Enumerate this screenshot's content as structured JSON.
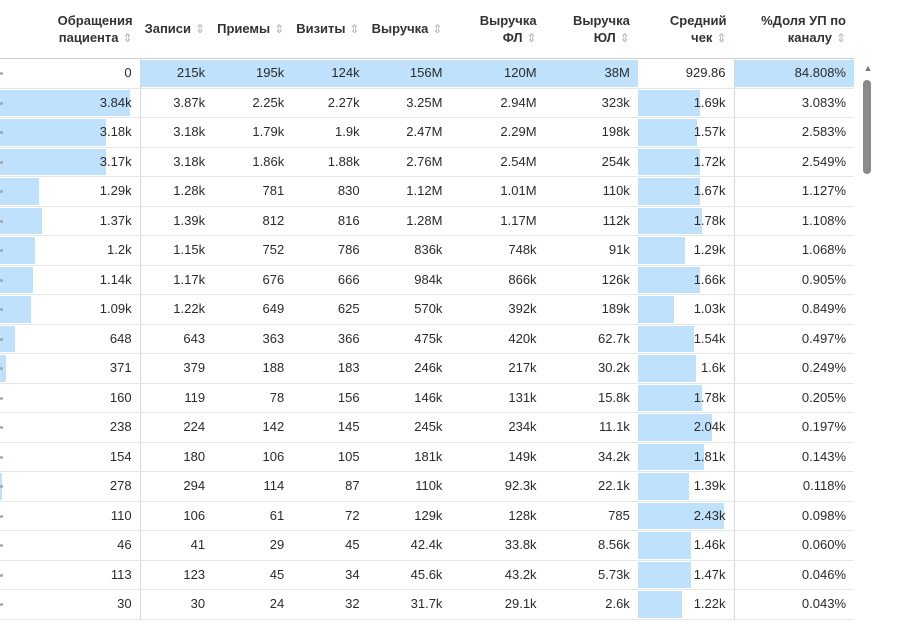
{
  "headers": [
    {
      "line1": "Обращения",
      "line2": "пациента"
    },
    {
      "line1": "",
      "line2": "Записи"
    },
    {
      "line1": "",
      "line2": "Приемы"
    },
    {
      "line1": "",
      "line2": "Визиты"
    },
    {
      "line1": "",
      "line2": "Выручка"
    },
    {
      "line1": "Выручка",
      "line2": "ФЛ"
    },
    {
      "line1": "Выручка",
      "line2": "ЮЛ"
    },
    {
      "line1": "Средний",
      "line2": "чек"
    },
    {
      "line1": "%Доля УП по",
      "line2": "каналу"
    }
  ],
  "sort_glyph": "⇕",
  "scroll_up_glyph": "▲",
  "bar_color": "#bfe1fb",
  "rows": [
    {
      "cells": [
        "0",
        "215k",
        "195k",
        "124k",
        "156M",
        "120M",
        "38M",
        "929.86",
        "84.808%"
      ],
      "bars": [
        0,
        1,
        1,
        1,
        1,
        1,
        1,
        0,
        1
      ]
    },
    {
      "cells": [
        "3.84k",
        "3.87k",
        "2.25k",
        "2.27k",
        "3.25M",
        "2.94M",
        "323k",
        "1.69k",
        "3.083%"
      ],
      "bars": [
        1.0,
        0,
        0,
        0,
        0,
        0,
        0,
        0.73,
        0
      ]
    },
    {
      "cells": [
        "3.18k",
        "3.18k",
        "1.79k",
        "1.9k",
        "2.47M",
        "2.29M",
        "198k",
        "1.57k",
        "2.583%"
      ],
      "bars": [
        0.83,
        0,
        0,
        0,
        0,
        0,
        0,
        0.69,
        0
      ]
    },
    {
      "cells": [
        "3.17k",
        "3.18k",
        "1.86k",
        "1.88k",
        "2.76M",
        "2.54M",
        "254k",
        "1.72k",
        "2.549%"
      ],
      "bars": [
        0.83,
        0,
        0,
        0,
        0,
        0,
        0,
        0.73,
        0
      ]
    },
    {
      "cells": [
        "1.29k",
        "1.28k",
        "781",
        "830",
        "1.12M",
        "1.01M",
        "110k",
        "1.67k",
        "1.127%"
      ],
      "bars": [
        0.34,
        0,
        0,
        0,
        0,
        0,
        0,
        0.72,
        0
      ]
    },
    {
      "cells": [
        "1.37k",
        "1.39k",
        "812",
        "816",
        "1.28M",
        "1.17M",
        "112k",
        "1.78k",
        "1.108%"
      ],
      "bars": [
        0.36,
        0,
        0,
        0,
        0,
        0,
        0,
        0.75,
        0
      ]
    },
    {
      "cells": [
        "1.2k",
        "1.15k",
        "752",
        "786",
        "836k",
        "748k",
        "91k",
        "1.29k",
        "1.068%"
      ],
      "bars": [
        0.31,
        0,
        0,
        0,
        0,
        0,
        0,
        0.55,
        0
      ]
    },
    {
      "cells": [
        "1.14k",
        "1.17k",
        "676",
        "666",
        "984k",
        "866k",
        "126k",
        "1.66k",
        "0.905%"
      ],
      "bars": [
        0.3,
        0,
        0,
        0,
        0,
        0,
        0,
        0.72,
        0
      ]
    },
    {
      "cells": [
        "1.09k",
        "1.22k",
        "649",
        "625",
        "570k",
        "392k",
        "189k",
        "1.03k",
        "0.849%"
      ],
      "bars": [
        0.28,
        0,
        0,
        0,
        0,
        0,
        0,
        0.42,
        0
      ]
    },
    {
      "cells": [
        "648",
        "643",
        "363",
        "366",
        "475k",
        "420k",
        "62.7k",
        "1.54k",
        "0.497%"
      ],
      "bars": [
        0.17,
        0,
        0,
        0,
        0,
        0,
        0,
        0.66,
        0
      ]
    },
    {
      "cells": [
        "371",
        "379",
        "188",
        "183",
        "246k",
        "217k",
        "30.2k",
        "1.6k",
        "0.249%"
      ],
      "bars": [
        0.1,
        0,
        0,
        0,
        0,
        0,
        0,
        0.68,
        0
      ]
    },
    {
      "cells": [
        "160",
        "119",
        "78",
        "156",
        "146k",
        "131k",
        "15.8k",
        "1.78k",
        "0.205%"
      ],
      "bars": [
        0.04,
        0,
        0,
        0,
        0,
        0,
        0,
        0.75,
        0
      ]
    },
    {
      "cells": [
        "238",
        "224",
        "142",
        "145",
        "245k",
        "234k",
        "11.1k",
        "2.04k",
        "0.197%"
      ],
      "bars": [
        0.06,
        0,
        0,
        0,
        0,
        0,
        0,
        0.87,
        0
      ]
    },
    {
      "cells": [
        "154",
        "180",
        "106",
        "105",
        "181k",
        "149k",
        "34.2k",
        "1.81k",
        "0.143%"
      ],
      "bars": [
        0.04,
        0,
        0,
        0,
        0,
        0,
        0,
        0.77,
        0
      ]
    },
    {
      "cells": [
        "278",
        "294",
        "114",
        "87",
        "110k",
        "92.3k",
        "22.1k",
        "1.39k",
        "0.118%"
      ],
      "bars": [
        0.07,
        0,
        0,
        0,
        0,
        0,
        0,
        0.6,
        0
      ]
    },
    {
      "cells": [
        "110",
        "106",
        "61",
        "72",
        "129k",
        "128k",
        "785",
        "2.43k",
        "0.098%"
      ],
      "bars": [
        0.03,
        0,
        0,
        0,
        0,
        0,
        0,
        1.0,
        0
      ]
    },
    {
      "cells": [
        "46",
        "41",
        "29",
        "45",
        "42.4k",
        "33.8k",
        "8.56k",
        "1.46k",
        "0.060%"
      ],
      "bars": [
        0.02,
        0,
        0,
        0,
        0,
        0,
        0,
        0.62,
        0
      ]
    },
    {
      "cells": [
        "113",
        "123",
        "45",
        "34",
        "45.6k",
        "43.2k",
        "5.73k",
        "1.47k",
        "0.046%"
      ],
      "bars": [
        0.03,
        0,
        0,
        0,
        0,
        0,
        0,
        0.62,
        0
      ]
    },
    {
      "cells": [
        "30",
        "30",
        "24",
        "32",
        "31.7k",
        "29.1k",
        "2.6k",
        "1.22k",
        "0.043%"
      ],
      "bars": [
        0.01,
        0,
        0,
        0,
        0,
        0,
        0,
        0.52,
        0
      ]
    }
  ]
}
